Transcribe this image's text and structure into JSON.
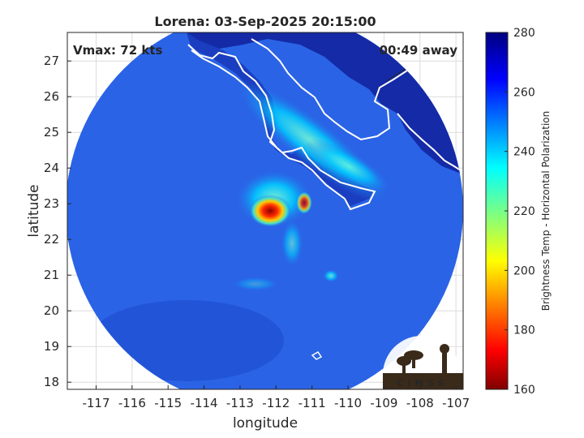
{
  "title": "Lorena: 03-Sep-2025 20:15:00",
  "vmax_label": "Vmax: 72 kts",
  "time_away_label": "00:49 away",
  "xlabel": "longitude",
  "ylabel": "latitude",
  "colorbar_label": "Brightness Temp - Horizontal Polarization",
  "logo_text": "CIMSS",
  "x_ticks": [
    "-117",
    "-116",
    "-115",
    "-114",
    "-113",
    "-112",
    "-111",
    "-110",
    "-109",
    "-108",
    "-107"
  ],
  "y_ticks": [
    "18",
    "19",
    "20",
    "21",
    "22",
    "23",
    "24",
    "25",
    "26",
    "27"
  ],
  "colorbar_ticks": [
    "160",
    "180",
    "200",
    "220",
    "240",
    "260",
    "280"
  ],
  "chart_data": {
    "type": "heatmap",
    "title": "Lorena: 03-Sep-2025 20:15:00",
    "xlabel": "longitude",
    "ylabel": "latitude",
    "xlim": [
      -117.8,
      -106.8
    ],
    "ylim": [
      17.8,
      27.8
    ],
    "colorbar_range": [
      160,
      280
    ],
    "colormap": "jet",
    "grid": true,
    "storm_center": {
      "lon": -112.3,
      "lat": 22.9
    },
    "colors": {
      "background": "#2a63e6",
      "land": "#0f1f8a",
      "coast": "#ffffff"
    }
  }
}
